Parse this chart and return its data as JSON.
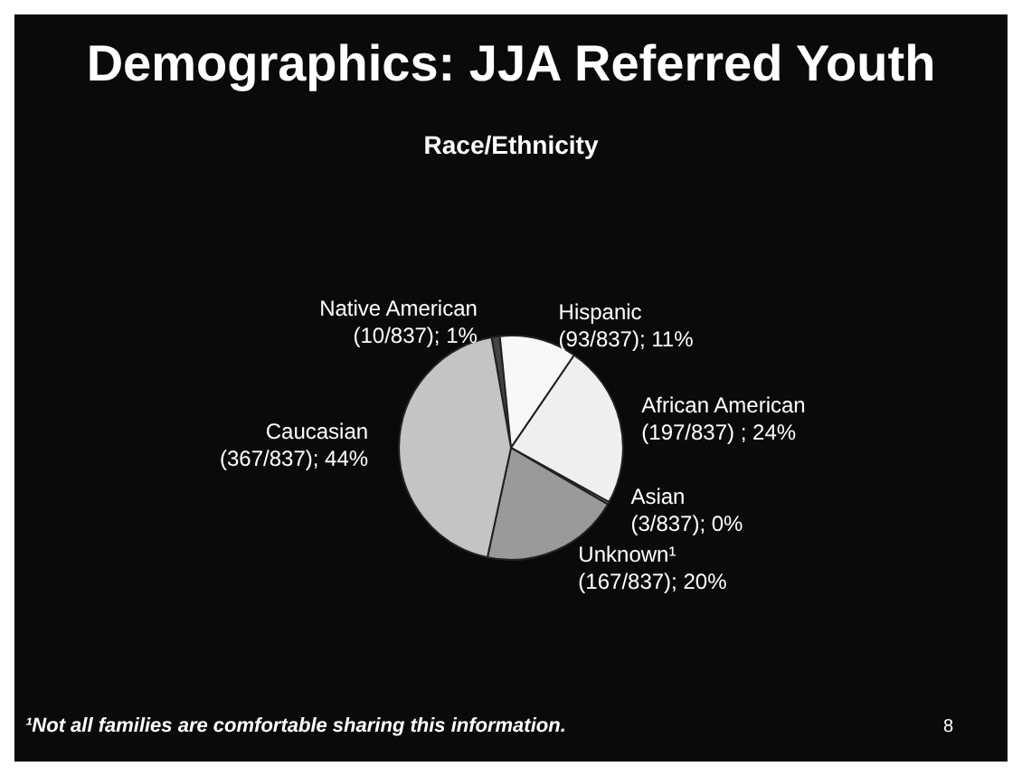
{
  "chart_data": {
    "type": "pie",
    "title": "Demographics: JJA Referred Youth",
    "subtitle": "Race/Ethnicity",
    "categories": [
      "Native American",
      "Hispanic",
      "African American",
      "Asian",
      "Unknown¹",
      "Caucasian"
    ],
    "values": [
      10,
      93,
      197,
      3,
      167,
      367
    ],
    "value_labels": [
      "(10/837); 1%",
      "(93/837); 11%",
      "(197/837) ; 24%",
      "(3/837); 0%",
      "(167/837); 20%",
      "(367/837); 44%"
    ],
    "colors": [
      "#444444",
      "#f8f8f8",
      "#efefef",
      "#8a8a8a",
      "#9a9a9a",
      "#c4c4c4"
    ],
    "annotations": [
      "¹Not all families are comfortable sharing this information.",
      "8"
    ]
  }
}
